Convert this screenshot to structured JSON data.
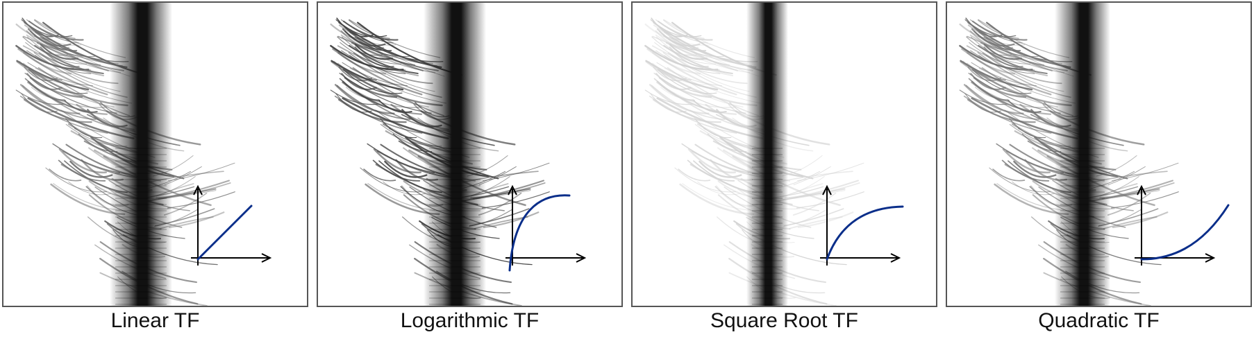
{
  "colors": {
    "frame_border": "#555555",
    "band": "#111111",
    "streaks": "#3a3a3a",
    "curve": "#0a2e8a",
    "axes": "#000000"
  },
  "panels": [
    {
      "caption": "Linear TF",
      "curve": "linear",
      "streak_opacity": 0.75,
      "curve_icon": "linear-curve-icon"
    },
    {
      "caption": "Logarithmic TF",
      "curve": "logarithmic",
      "streak_opacity": 0.95,
      "curve_icon": "logarithmic-curve-icon"
    },
    {
      "caption": "Square Root TF",
      "curve": "square-root",
      "streak_opacity": 0.22,
      "curve_icon": "square-root-curve-icon"
    },
    {
      "caption": "Quadratic TF",
      "curve": "quadratic",
      "streak_opacity": 0.7,
      "curve_icon": "quadratic-curve-icon"
    }
  ]
}
